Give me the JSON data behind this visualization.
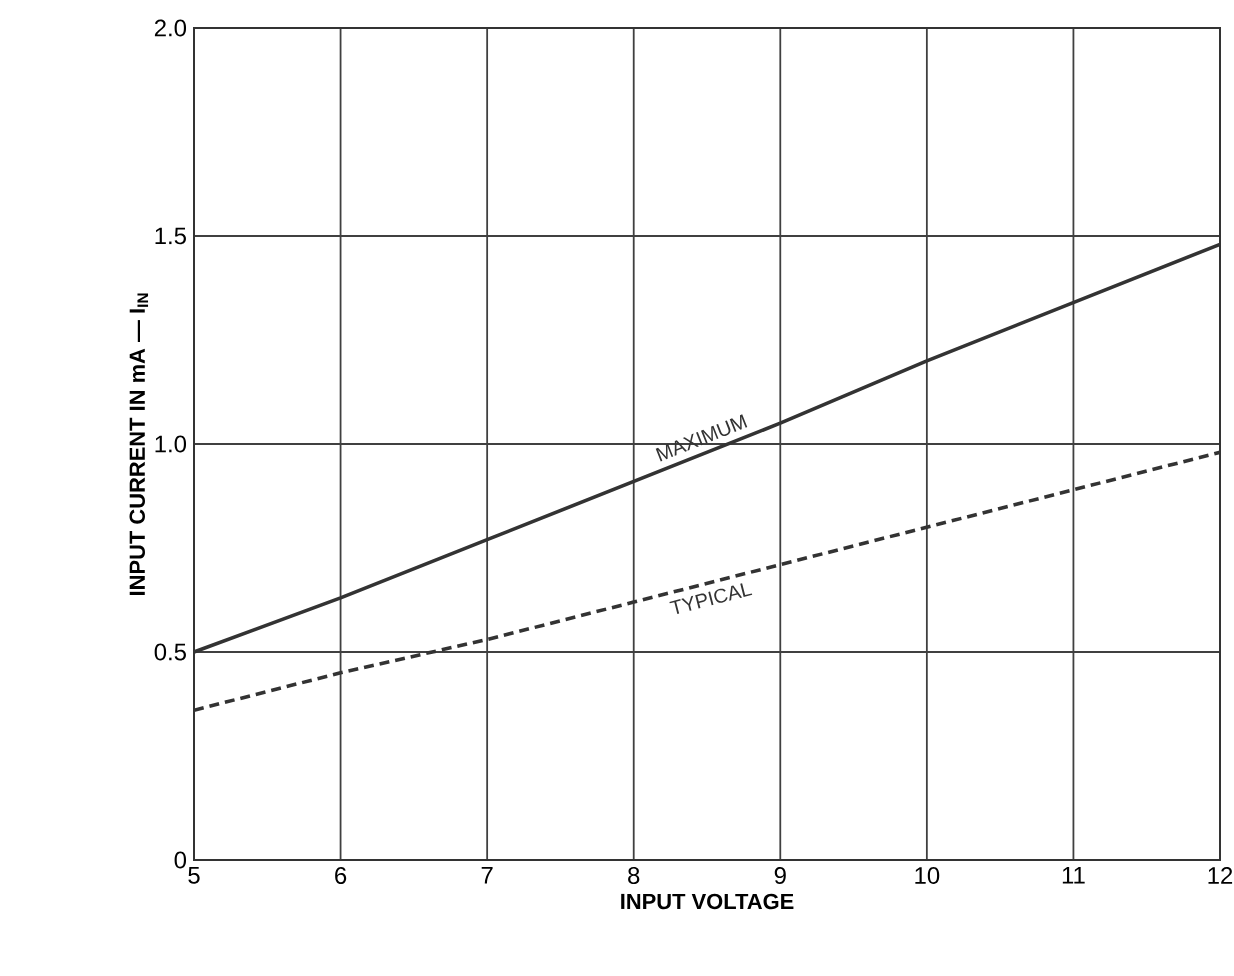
{
  "chart_data": {
    "type": "line",
    "xlabel": "INPUT VOLTAGE",
    "ylabel": "INPUT CURRENT IN mA — I$_{IN}$",
    "x": [
      5,
      6,
      7,
      8,
      9,
      10,
      11,
      12
    ],
    "series": [
      {
        "name": "MAXIMUM",
        "color": "#333333",
        "line_style": "solid",
        "values": [
          0.5,
          0.63,
          0.77,
          0.91,
          1.05,
          1.2,
          1.34,
          1.48
        ]
      },
      {
        "name": "TYPICAL",
        "color": "#333333",
        "line_style": "dashed",
        "values": [
          0.36,
          0.45,
          0.53,
          0.62,
          0.71,
          0.8,
          0.89,
          0.98
        ]
      }
    ],
    "xlim": [
      5,
      12
    ],
    "xticks": [
      5,
      6,
      7,
      8,
      9,
      10,
      11,
      12
    ],
    "ylim": [
      0,
      2
    ],
    "yticks": [
      {
        "value": 0,
        "label": "0"
      },
      {
        "value": 0.5,
        "label": "0.5"
      },
      {
        "value": 1,
        "label": "1.0"
      },
      {
        "value": 1.5,
        "label": "1.5"
      },
      {
        "value": 2,
        "label": "2.0"
      }
    ],
    "grid": true,
    "marker": "none"
  }
}
